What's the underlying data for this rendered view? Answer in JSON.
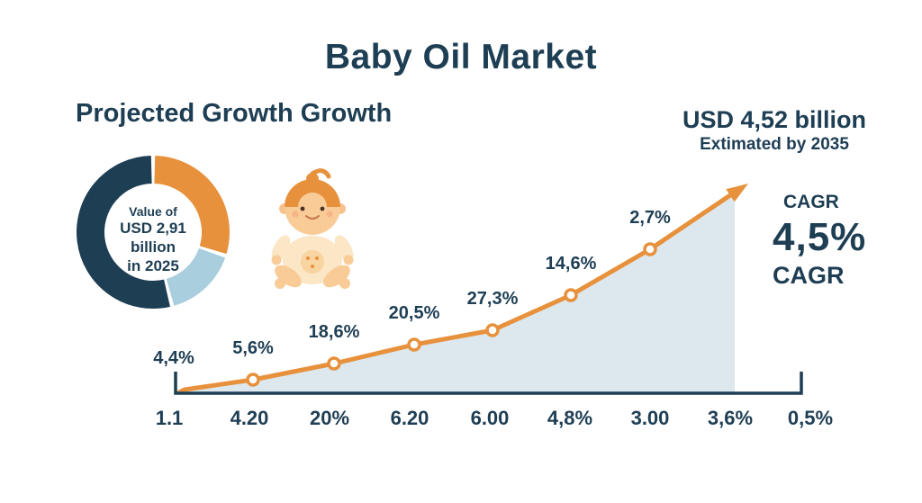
{
  "title": "Baby Oil Market",
  "subtitle": "Projected Growth Growth",
  "projection": {
    "value": "USD 4,52 billion",
    "caption": "Extimated by 2035"
  },
  "cagr": {
    "label_top": "CAGR",
    "value": "4,5%",
    "label_bottom": "CAGR"
  },
  "donut": {
    "center_line1": "Value of",
    "center_line2": "USD 2,91 billion",
    "center_line3": "in 2025",
    "segments": [
      {
        "name": "orange",
        "color": "#e8913c",
        "pct": 30
      },
      {
        "name": "light-blue",
        "color": "#a9cedd",
        "pct": 16
      },
      {
        "name": "navy",
        "color": "#1e3e54",
        "pct": 54
      }
    ]
  },
  "colors": {
    "navy": "#1e3e54",
    "orange": "#e8913c",
    "light_blue": "#a9cedd",
    "area_fill": "#dde8ee",
    "background": "#ffffff"
  },
  "chart_data": {
    "type": "area",
    "title": "Baby Oil Market",
    "subtitle": "Projected Growth Growth",
    "point_labels": [
      "4,4%",
      "5,6%",
      "18,6%",
      "20,5%",
      "27,3%",
      "14,6%",
      "2,7%"
    ],
    "x_tick_labels": [
      "1.1",
      "4.20",
      "20%",
      "6.20",
      "6.00",
      "4,8%",
      "3.00",
      "3,6%",
      "0,5%"
    ],
    "trend": "rising curve ending in up-right arrow",
    "annotations": [
      "USD 4,52 billion Extimated by 2035",
      "CAGR 4,5%",
      "Value of USD 2,91 billion in 2025"
    ],
    "line_color": "#e8913c",
    "area_color": "#dde8ee",
    "axis_color": "#1e3e54",
    "legend": "none",
    "grid": false
  }
}
